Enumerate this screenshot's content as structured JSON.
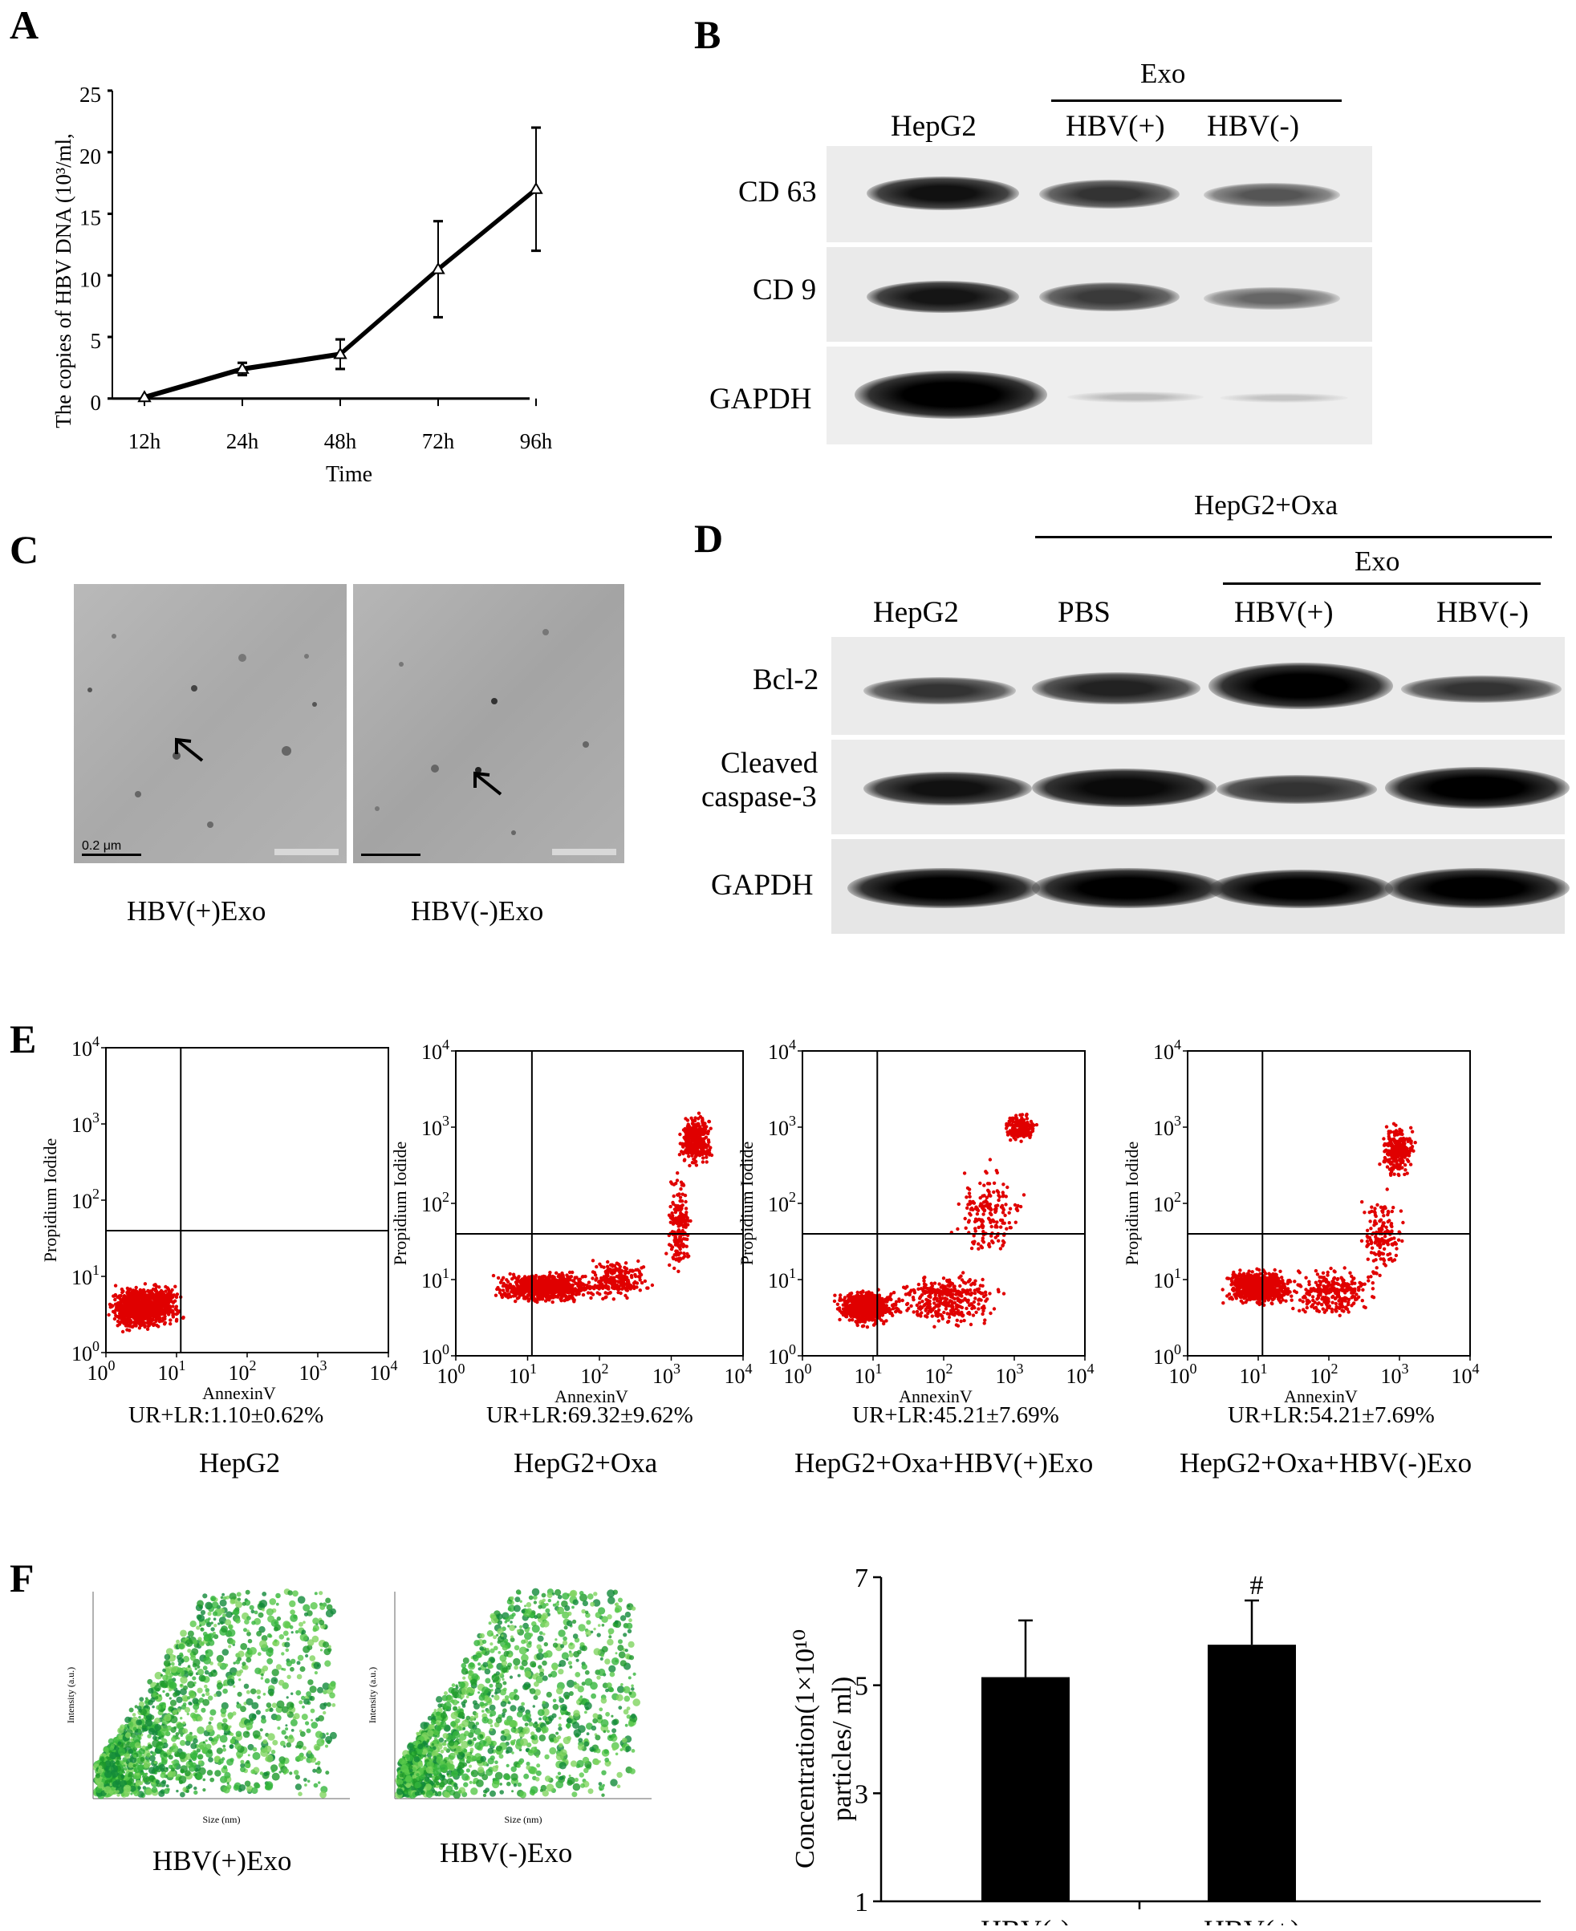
{
  "panel_letters": {
    "a": "A",
    "b": "B",
    "c": "C",
    "d": "D",
    "e": "E",
    "f": "F"
  },
  "colors": {
    "flow_dots": "#e00000",
    "nta_green": "#2aa830",
    "bar_fill": "#000000"
  },
  "chart_data": [
    {
      "type": "line",
      "panel": "A",
      "categories": [
        "12h",
        "24h",
        "48h",
        "72h",
        "96h"
      ],
      "series": [
        {
          "values": [
            0.1,
            2.4,
            3.6,
            10.5,
            17.0
          ],
          "errors": [
            0.1,
            0.5,
            1.2,
            3.9,
            5.0
          ]
        }
      ],
      "xlabel": "Time",
      "ylabel": "The copies of HBV DNA (10³/ml,",
      "ylim": [
        0,
        25
      ],
      "yticks": [
        "0",
        "5",
        "10",
        "15",
        "20",
        "25"
      ]
    },
    {
      "type": "bar",
      "panel": "F",
      "categories": [
        "HBV(-)",
        "HBV(+)"
      ],
      "values": [
        5.15,
        5.75
      ],
      "errors": [
        1.05,
        0.82
      ],
      "annotations": [
        "",
        "#"
      ],
      "ylabel_line1": "Concentration(1×10¹⁰",
      "ylabel_line2": "particles/ ml)",
      "ylim": [
        1,
        7
      ],
      "yticks": [
        "1",
        "3",
        "5",
        "7"
      ]
    }
  ],
  "panel_b": {
    "exo_header": "Exo",
    "columns": [
      "HepG2",
      "HBV(+)",
      "HBV(-)"
    ],
    "rows": [
      "CD 63",
      "CD 9",
      "GAPDH"
    ]
  },
  "panel_c": {
    "captions": [
      "HBV(+)Exo",
      "HBV(-)Exo"
    ],
    "scale_bar": "0.2 μm"
  },
  "panel_d": {
    "header": "HepG2+Oxa",
    "exo_header": "Exo",
    "columns": [
      "HepG2",
      "PBS",
      "HBV(+)",
      "HBV(-)"
    ],
    "rows": [
      "Bcl-2",
      "Cleaved",
      "caspase-3",
      "GAPDH"
    ]
  },
  "panel_e": {
    "ylabel": "Propidium Iodide",
    "xlabel": "AnnexinV",
    "ticks": [
      "10",
      "0",
      "1",
      "2",
      "3",
      "4"
    ],
    "plots": [
      {
        "stat": "UR+LR:1.10±0.62%",
        "title": "HepG2"
      },
      {
        "stat": "UR+LR:69.32±9.62%",
        "title": "HepG2+Oxa"
      },
      {
        "stat": "UR+LR:45.21±7.69%",
        "title": "HepG2+Oxa+HBV(+)Exo"
      },
      {
        "stat": "UR+LR:54.21±7.69%",
        "title": "HepG2+Oxa+HBV(-)Exo"
      }
    ]
  },
  "panel_f": {
    "nta_captions": [
      "HBV(+)Exo",
      "HBV(-)Exo"
    ],
    "nta_xlabel": "Size (nm)",
    "nta_ylabel": "Intensity (a.u.)"
  }
}
